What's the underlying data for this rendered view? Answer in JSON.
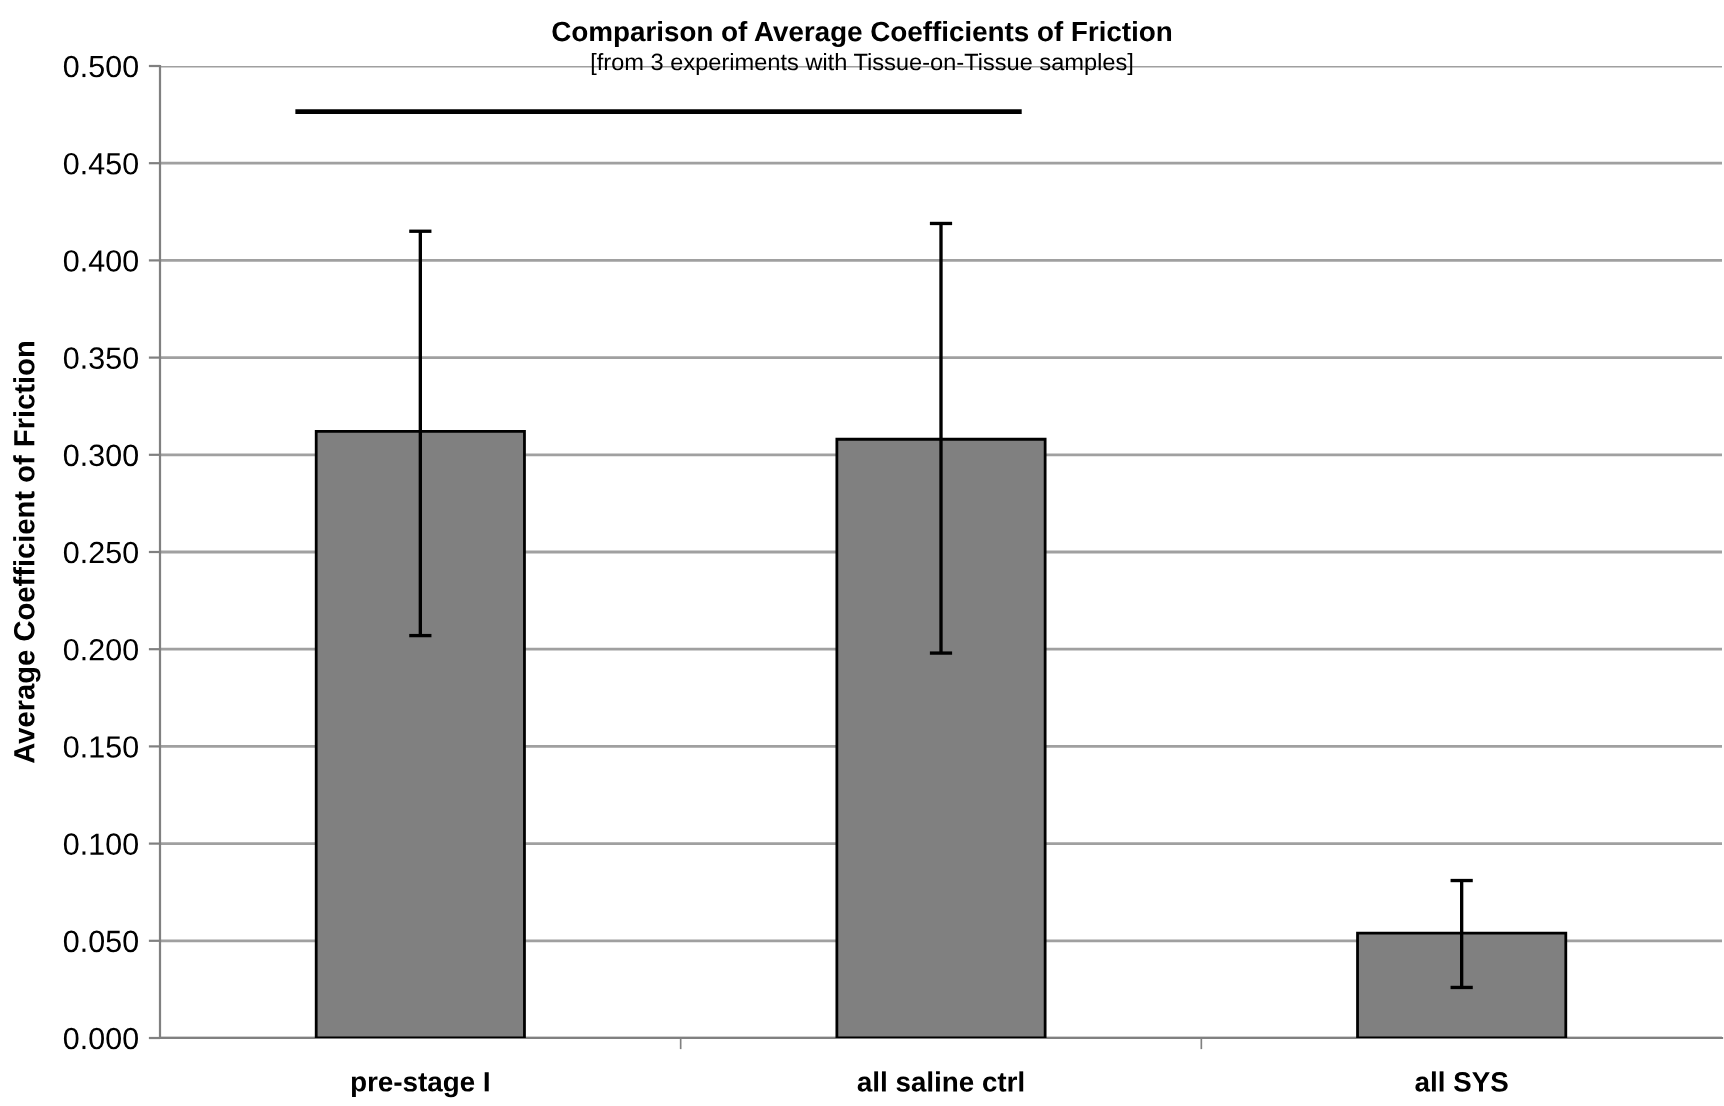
{
  "chart_data": {
    "type": "bar",
    "title": "Comparison of Average Coefficients of Friction",
    "subtitle": "[from 3 experiments with Tissue-on-Tissue samples]",
    "ylabel": "Average Coefficient of Friction",
    "categories": [
      "pre-stage I",
      "all saline ctrl",
      "all SYS"
    ],
    "values": [
      0.312,
      0.308,
      0.054
    ],
    "errors": [
      [
        0.207,
        0.415
      ],
      [
        0.198,
        0.419
      ],
      [
        0.026,
        0.081
      ]
    ],
    "color": "#808080",
    "ylim": [
      0,
      0.5
    ],
    "yticks": [
      {
        "value": 0,
        "label": "0.000"
      },
      {
        "value": 0.05,
        "label": "0.050"
      },
      {
        "value": 0.1,
        "label": "0.100"
      },
      {
        "value": 0.15,
        "label": "0.150"
      },
      {
        "value": 0.2,
        "label": "0.200"
      },
      {
        "value": 0.25,
        "label": "0.250"
      },
      {
        "value": 0.3,
        "label": "0.300"
      },
      {
        "value": 0.35,
        "label": "0.350"
      },
      {
        "value": 0.4,
        "label": "0.400"
      },
      {
        "value": 0.45,
        "label": "0.450"
      },
      {
        "value": 0.5,
        "label": "0.500"
      }
    ],
    "grid": "y",
    "legend": false
  }
}
